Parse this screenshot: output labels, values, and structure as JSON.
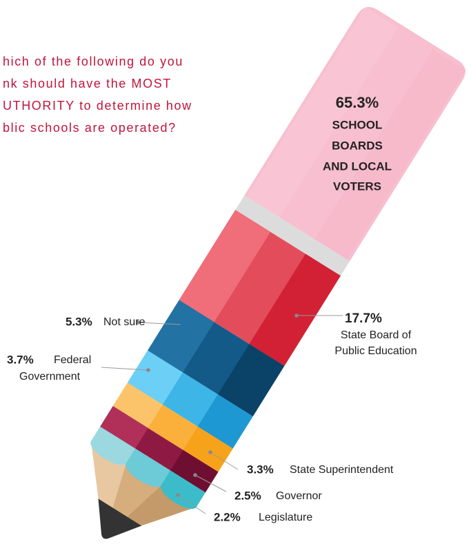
{
  "chart_data": {
    "type": "pencil",
    "title_lines": [
      "hich of the following do you",
      "nk should have the MOST",
      "UTHORITY to determine how",
      "blic schools are operated?"
    ],
    "categories": [
      [
        "SCHOOL",
        "BOARDS",
        "AND LOCAL",
        "VOTERS"
      ],
      [
        "State Board of",
        "Public Education"
      ],
      [
        "Not sure"
      ],
      [
        "Federal",
        "Government"
      ],
      [
        "State Superintendent"
      ],
      [
        "Governor"
      ],
      [
        "Legislature"
      ]
    ],
    "values": [
      65.3,
      17.7,
      5.3,
      3.7,
      3.3,
      2.5,
      2.2
    ],
    "value_labels": [
      "65.3%",
      "17.7%",
      "5.3%",
      "3.7%",
      "3.3%",
      "2.5%",
      "2.2%"
    ],
    "colors": [
      [
        "#f9c8d6",
        "#f7bfcf",
        "#f5b8c9"
      ],
      [
        "#f06d7a",
        "#e34d5b",
        "#d22135"
      ],
      [
        "#2272a4",
        "#135a89",
        "#0b4268"
      ],
      [
        "#6ccff6",
        "#3db5e6",
        "#1e98d2"
      ],
      [
        "#fcc46a",
        "#fbb03b",
        "#f7a21b"
      ],
      [
        "#b0305a",
        "#8e1a44",
        "#6e0f32"
      ],
      [
        "#9bd8e0",
        "#6ccbd6",
        "#3bbcc8"
      ]
    ]
  }
}
